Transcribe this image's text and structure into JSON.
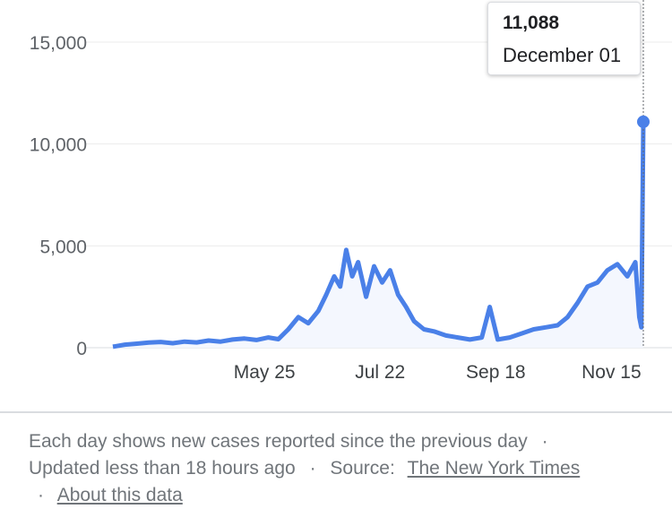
{
  "chart_data": {
    "type": "line",
    "title": "",
    "xlabel": "",
    "ylabel": "",
    "ylim": [
      0,
      15000
    ],
    "grid": true,
    "series_color": "#4a80e8",
    "y_ticks": [
      0,
      5000,
      10000,
      15000
    ],
    "y_tick_labels": [
      "0",
      "5,000",
      "10,000",
      "15,000"
    ],
    "x_ticks": [
      "2020-05-25",
      "2020-07-22",
      "2020-09-18",
      "2020-11-15"
    ],
    "x_tick_labels": [
      "May 25",
      "Jul 22",
      "Sep 18",
      "Nov 15"
    ],
    "x_start": "2020-03-10",
    "x_end": "2020-12-01",
    "points": [
      [
        "2020-03-10",
        50
      ],
      [
        "2020-03-16",
        150
      ],
      [
        "2020-03-22",
        200
      ],
      [
        "2020-03-28",
        250
      ],
      [
        "2020-04-03",
        280
      ],
      [
        "2020-04-09",
        220
      ],
      [
        "2020-04-15",
        300
      ],
      [
        "2020-04-21",
        260
      ],
      [
        "2020-04-27",
        350
      ],
      [
        "2020-05-03",
        300
      ],
      [
        "2020-05-09",
        400
      ],
      [
        "2020-05-15",
        450
      ],
      [
        "2020-05-21",
        380
      ],
      [
        "2020-05-27",
        500
      ],
      [
        "2020-06-01",
        420
      ],
      [
        "2020-06-06",
        900
      ],
      [
        "2020-06-11",
        1500
      ],
      [
        "2020-06-16",
        1200
      ],
      [
        "2020-06-21",
        1800
      ],
      [
        "2020-06-25",
        2600
      ],
      [
        "2020-06-29",
        3500
      ],
      [
        "2020-07-02",
        3000
      ],
      [
        "2020-07-05",
        4800
      ],
      [
        "2020-07-08",
        3500
      ],
      [
        "2020-07-11",
        4200
      ],
      [
        "2020-07-15",
        2500
      ],
      [
        "2020-07-19",
        4000
      ],
      [
        "2020-07-23",
        3200
      ],
      [
        "2020-07-27",
        3800
      ],
      [
        "2020-07-31",
        2600
      ],
      [
        "2020-08-04",
        2000
      ],
      [
        "2020-08-08",
        1300
      ],
      [
        "2020-08-13",
        900
      ],
      [
        "2020-08-18",
        800
      ],
      [
        "2020-08-24",
        600
      ],
      [
        "2020-08-30",
        500
      ],
      [
        "2020-09-05",
        400
      ],
      [
        "2020-09-11",
        500
      ],
      [
        "2020-09-15",
        2000
      ],
      [
        "2020-09-19",
        400
      ],
      [
        "2020-09-25",
        500
      ],
      [
        "2020-10-01",
        700
      ],
      [
        "2020-10-07",
        900
      ],
      [
        "2020-10-13",
        1000
      ],
      [
        "2020-10-19",
        1100
      ],
      [
        "2020-10-24",
        1500
      ],
      [
        "2020-10-29",
        2200
      ],
      [
        "2020-11-03",
        3000
      ],
      [
        "2020-11-08",
        3200
      ],
      [
        "2020-11-13",
        3800
      ],
      [
        "2020-11-18",
        4100
      ],
      [
        "2020-11-23",
        3500
      ],
      [
        "2020-11-27",
        4200
      ],
      [
        "2020-11-29",
        1500
      ],
      [
        "2020-11-30",
        1000
      ],
      [
        "2020-12-01",
        11088
      ]
    ],
    "highlight": {
      "x": "2020-12-01",
      "y": 11088
    }
  },
  "tooltip": {
    "value": "11,088",
    "date": "December 01"
  },
  "footer": {
    "line1": "Each day shows new cases reported since the previous day",
    "sep": "·",
    "updated": "Updated less than 18 hours ago",
    "source_label": "Source:",
    "source_link": "The New York Times",
    "about_link": "About this data"
  }
}
